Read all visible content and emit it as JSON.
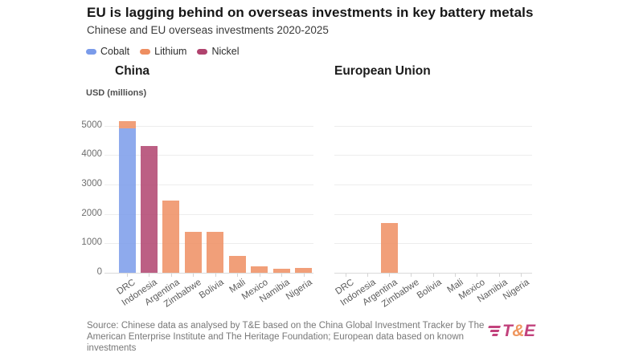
{
  "header": {
    "title": "EU is lagging behind on overseas investments in key battery metals",
    "subtitle": "Chinese and EU overseas investments 2020-2025"
  },
  "chart_data": {
    "type": "bar",
    "stacked": true,
    "categories": [
      "DRC",
      "Indonesia",
      "Argentina",
      "Zimbabwe",
      "Bolivia",
      "Mali",
      "Mexico",
      "Namibia",
      "Nigeria"
    ],
    "ylabel": "USD (millions)",
    "ylim": [
      0,
      5200
    ],
    "yticks": [
      0,
      1000,
      2000,
      3000,
      4000,
      5000
    ],
    "grid": "horizontal",
    "legend_position": "top-left",
    "legend": [
      {
        "label": "Cobalt",
        "color": "#7A9BEA"
      },
      {
        "label": "Lithium",
        "color": "#EE8E61"
      },
      {
        "label": "Nickel",
        "color": "#B0436E"
      }
    ],
    "panels": [
      {
        "title": "China",
        "series": [
          {
            "name": "Cobalt",
            "values": [
              4900,
              0,
              0,
              0,
              0,
              0,
              0,
              0,
              0
            ]
          },
          {
            "name": "Lithium",
            "values": [
              250,
              0,
              2450,
              1400,
              1380,
              580,
              220,
              130,
              170
            ]
          },
          {
            "name": "Nickel",
            "values": [
              0,
              4300,
              0,
              0,
              0,
              0,
              0,
              0,
              0
            ]
          }
        ]
      },
      {
        "title": "European Union",
        "series": [
          {
            "name": "Cobalt",
            "values": [
              0,
              0,
              0,
              0,
              0,
              0,
              0,
              0,
              0
            ]
          },
          {
            "name": "Lithium",
            "values": [
              0,
              0,
              1700,
              0,
              0,
              0,
              0,
              0,
              0
            ]
          },
          {
            "name": "Nickel",
            "values": [
              0,
              0,
              0,
              0,
              0,
              0,
              0,
              0,
              0
            ]
          }
        ]
      }
    ]
  },
  "footer": {
    "source_lines": [
      "Source: Chinese data as analysed by T&E based on the China Global Investment Tracker by The",
      "American Enterprise Institute and The Heritage Foundation; European data based on known",
      "investments"
    ],
    "logo_parts": [
      {
        "text": "T",
        "color": "#C2427C"
      },
      {
        "text": "&",
        "color": "#EF975F"
      },
      {
        "text": "E",
        "color": "#C2427C"
      }
    ]
  }
}
